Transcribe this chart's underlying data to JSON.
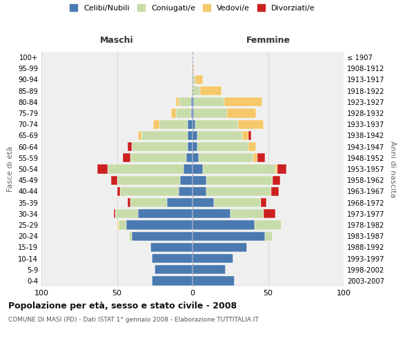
{
  "age_groups": [
    "0-4",
    "5-9",
    "10-14",
    "15-19",
    "20-24",
    "25-29",
    "30-34",
    "35-39",
    "40-44",
    "45-49",
    "50-54",
    "55-59",
    "60-64",
    "65-69",
    "70-74",
    "75-79",
    "80-84",
    "85-89",
    "90-94",
    "95-99",
    "100+"
  ],
  "birth_years": [
    "2003-2007",
    "1998-2002",
    "1993-1997",
    "1988-1992",
    "1983-1987",
    "1978-1982",
    "1973-1977",
    "1968-1972",
    "1963-1967",
    "1958-1962",
    "1953-1957",
    "1948-1952",
    "1943-1947",
    "1938-1942",
    "1933-1937",
    "1928-1932",
    "1923-1927",
    "1918-1922",
    "1913-1917",
    "1908-1912",
    "≤ 1907"
  ],
  "colors": {
    "celibi": "#4a7ab0",
    "coniugati": "#c8dcaa",
    "vedovi": "#f5c86a",
    "divorziati": "#cc2020"
  },
  "maschi": {
    "celibi": [
      27,
      25,
      27,
      28,
      40,
      44,
      36,
      17,
      9,
      8,
      6,
      4,
      3,
      3,
      3,
      1,
      1,
      0,
      0,
      0,
      0
    ],
    "coniugati": [
      0,
      0,
      0,
      0,
      2,
      5,
      15,
      24,
      39,
      42,
      50,
      37,
      37,
      31,
      19,
      10,
      8,
      1,
      0,
      0,
      0
    ],
    "vedovi": [
      0,
      0,
      0,
      0,
      0,
      1,
      0,
      0,
      0,
      0,
      0,
      0,
      0,
      2,
      4,
      3,
      2,
      0,
      0,
      0,
      0
    ],
    "divorziati": [
      0,
      0,
      0,
      0,
      0,
      0,
      1,
      2,
      2,
      4,
      7,
      5,
      3,
      0,
      0,
      0,
      0,
      0,
      0,
      0,
      0
    ]
  },
  "femmine": {
    "celibi": [
      28,
      22,
      27,
      36,
      48,
      41,
      25,
      14,
      9,
      9,
      7,
      4,
      3,
      3,
      2,
      1,
      1,
      0,
      0,
      0,
      0
    ],
    "coniugati": [
      0,
      0,
      0,
      0,
      5,
      18,
      22,
      31,
      43,
      44,
      48,
      36,
      34,
      30,
      28,
      22,
      20,
      5,
      2,
      0,
      0
    ],
    "vedovi": [
      0,
      0,
      0,
      0,
      0,
      0,
      0,
      0,
      0,
      0,
      1,
      3,
      5,
      4,
      17,
      19,
      25,
      14,
      5,
      1,
      0
    ],
    "divorziati": [
      0,
      0,
      0,
      0,
      0,
      0,
      8,
      4,
      5,
      5,
      6,
      5,
      0,
      2,
      0,
      0,
      0,
      0,
      0,
      0,
      0
    ]
  },
  "xlim": 100,
  "title": "Popolazione per età, sesso e stato civile - 2008",
  "subtitle": "COMUNE DI MASI (PD) - Dati ISTAT 1° gennaio 2008 - Elaborazione TUTTITALIA.IT",
  "ylabel_left": "Fasce di età",
  "ylabel_right": "Anni di nascita",
  "xlabel_maschi": "Maschi",
  "xlabel_femmine": "Femmine",
  "bg_color": "#efefef",
  "legend_labels": [
    "Celibi/Nubili",
    "Coniugati/e",
    "Vedovi/e",
    "Divorziati/e"
  ]
}
